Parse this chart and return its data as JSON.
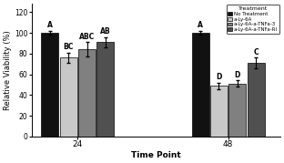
{
  "groups": [
    "24",
    "48"
  ],
  "treatments": [
    "No Treatment",
    "a-Ly-6A",
    "a-Ly-6A-a-TNFa-3",
    "a-Ly-6A-a-TNFa-RI"
  ],
  "values": [
    [
      100,
      76,
      84,
      91
    ],
    [
      100,
      49,
      51,
      71
    ]
  ],
  "errors": [
    [
      2,
      5,
      7,
      5
    ],
    [
      2,
      3,
      3,
      5
    ]
  ],
  "bar_colors": [
    "#111111",
    "#c8c8c8",
    "#808080",
    "#505050"
  ],
  "labels": [
    [
      "A",
      "BC",
      "ABC",
      "AB"
    ],
    [
      "A",
      "D",
      "D",
      "C"
    ]
  ],
  "ylabel": "Relative Viability (%)",
  "xlabel": "Time Point",
  "ylim": [
    0,
    128
  ],
  "yticks": [
    0,
    20,
    40,
    60,
    80,
    100,
    120
  ],
  "legend_title": "Treatment",
  "bar_width": 0.15,
  "group_centers": [
    1.0,
    2.3
  ],
  "group_labels": [
    "24",
    "48"
  ]
}
